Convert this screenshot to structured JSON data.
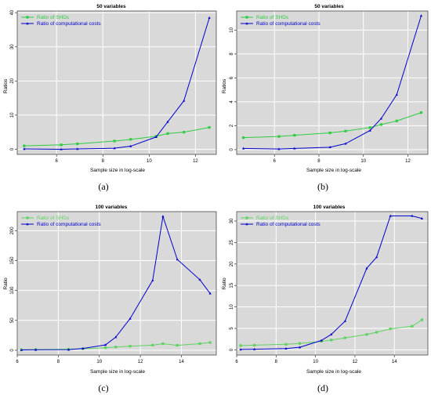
{
  "colors": {
    "green": "#2ecc40",
    "green_light": "#5fd35f",
    "blue": "#0000cc",
    "panel_bg": "#d9d9d9",
    "grid": "#ffffff"
  },
  "chart_data": [
    {
      "id": "a",
      "type": "line",
      "title": "50 variables",
      "xlabel": "Sample size in log-scale",
      "ylabel": "Ratios",
      "caption": "(a)",
      "xlim": [
        4.3,
        12.9
      ],
      "ylim": [
        -1.5,
        40.5
      ],
      "xticks": [
        6,
        8,
        10,
        12
      ],
      "yticks": [
        0,
        10,
        20,
        30,
        40
      ],
      "legend_position": "top-left",
      "grid": true,
      "series": [
        {
          "name": "Ratio of SHDs",
          "color": "green",
          "marker": "square",
          "x": [
            4.6,
            6.2,
            6.9,
            8.5,
            9.2,
            10.3,
            10.8,
            11.5,
            12.6
          ],
          "y": [
            1.0,
            1.3,
            1.6,
            2.4,
            2.9,
            3.8,
            4.6,
            5.0,
            6.4
          ]
        },
        {
          "name": "Ratio of computational costs",
          "color": "blue",
          "marker": "triangle",
          "x": [
            4.6,
            6.2,
            6.9,
            8.5,
            9.2,
            10.3,
            10.8,
            11.5,
            12.6
          ],
          "y": [
            0.1,
            0.0,
            0.1,
            0.3,
            0.9,
            3.6,
            8.0,
            14.2,
            38.5
          ]
        }
      ]
    },
    {
      "id": "b",
      "type": "line",
      "title": "50 variables",
      "xlabel": "Sample size in log-scale",
      "ylabel": "Ratios",
      "caption": "(b)",
      "xlim": [
        4.3,
        12.9
      ],
      "ylim": [
        -0.4,
        11.6
      ],
      "xticks": [
        6,
        8,
        10,
        12
      ],
      "yticks": [
        0,
        2,
        4,
        6,
        8,
        10
      ],
      "legend_position": "top-left",
      "grid": true,
      "series": [
        {
          "name": "Ratio of SHDs",
          "color": "green",
          "marker": "square",
          "x": [
            4.6,
            6.2,
            6.9,
            8.5,
            9.2,
            10.3,
            10.8,
            11.5,
            12.6
          ],
          "y": [
            1.0,
            1.1,
            1.2,
            1.4,
            1.55,
            1.85,
            2.1,
            2.4,
            3.1
          ]
        },
        {
          "name": "Ratio of computational costs",
          "color": "blue",
          "marker": "triangle",
          "x": [
            4.6,
            6.2,
            6.9,
            8.5,
            9.2,
            10.3,
            10.8,
            11.5,
            12.6
          ],
          "y": [
            0.1,
            0.05,
            0.1,
            0.2,
            0.5,
            1.6,
            2.6,
            4.6,
            11.2
          ]
        }
      ]
    },
    {
      "id": "c",
      "type": "line",
      "title": "100 variables",
      "xlabel": "Sample size in log-scale",
      "ylabel": "Ratio",
      "caption": "(c)",
      "xlim": [
        6.0,
        15.7
      ],
      "ylim": [
        -8,
        232
      ],
      "xticks": [
        6,
        8,
        10,
        12,
        14
      ],
      "yticks": [
        0,
        50,
        100,
        150,
        200
      ],
      "legend_position": "top-left",
      "grid": true,
      "series": [
        {
          "name": "Ratio of SHDs",
          "color": "green_light",
          "marker": "square",
          "x": [
            6.2,
            6.9,
            8.5,
            9.2,
            10.3,
            10.8,
            11.5,
            12.6,
            13.1,
            13.8,
            14.9,
            15.4
          ],
          "y": [
            1.0,
            1.2,
            1.8,
            2.5,
            4.2,
            5.5,
            6.8,
            8.5,
            11.0,
            8.2,
            11.0,
            13.0
          ]
        },
        {
          "name": "Ratio of computational costs",
          "color": "blue",
          "marker": "triangle",
          "x": [
            6.2,
            6.9,
            8.5,
            9.2,
            10.3,
            10.8,
            11.5,
            12.6,
            13.1,
            13.8,
            14.9,
            15.4
          ],
          "y": [
            0.5,
            0.8,
            1.0,
            3.0,
            9.0,
            22.0,
            53.0,
            117.0,
            224.0,
            152.0,
            118.0,
            95.0
          ]
        }
      ]
    },
    {
      "id": "d",
      "type": "line",
      "title": "100 variables",
      "xlabel": "Sample size in log-scale",
      "ylabel": "Ratio",
      "caption": "(d)",
      "xlim": [
        6.0,
        15.7
      ],
      "ylim": [
        -1.2,
        32.2
      ],
      "xticks": [
        6,
        8,
        10,
        12,
        14
      ],
      "yticks": [
        0,
        5,
        10,
        15,
        20,
        25,
        30
      ],
      "legend_position": "top-left",
      "grid": true,
      "series": [
        {
          "name": "Ratio of SHDs",
          "color": "green_light",
          "marker": "square",
          "x": [
            6.2,
            6.9,
            8.5,
            9.2,
            10.3,
            10.8,
            11.5,
            12.6,
            13.1,
            13.8,
            14.9,
            15.4
          ],
          "y": [
            1.0,
            1.1,
            1.3,
            1.5,
            2.0,
            2.3,
            2.8,
            3.6,
            4.1,
            4.9,
            5.5,
            7.0
          ]
        },
        {
          "name": "Ratio of computational costs",
          "color": "blue",
          "marker": "triangle",
          "x": [
            6.2,
            6.9,
            8.5,
            9.2,
            10.3,
            10.8,
            11.5,
            12.6,
            13.1,
            13.8,
            14.9,
            15.4
          ],
          "y": [
            0.1,
            0.15,
            0.3,
            0.6,
            2.2,
            3.6,
            6.7,
            19.0,
            21.6,
            31.2,
            31.2,
            30.6
          ]
        }
      ]
    }
  ]
}
